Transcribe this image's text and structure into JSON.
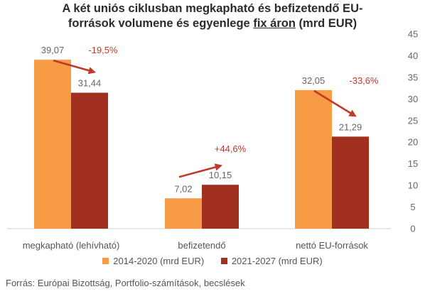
{
  "chart_data": {
    "type": "bar",
    "title_line1": "A két uniós ciklusban megkapható és befizetendő EU-",
    "title_line2_pre": "források volumene és egyenlege ",
    "title_line2_underlined": "fix áron",
    "title_line2_post": " (mrd EUR)",
    "categories": [
      "megkapható (lehívható)",
      "befizetendő",
      "nettó EU-források"
    ],
    "series": [
      {
        "name": "2014-2020 (mrd EUR)",
        "values": [
          39.07,
          7.02,
          32.05
        ],
        "labels": [
          "39,07",
          "7,02",
          "32,05"
        ],
        "color": "#F79B45"
      },
      {
        "name": "2021-2027 (mrd EUR)",
        "values": [
          31.44,
          10.15,
          21.29
        ],
        "labels": [
          "31,44",
          "10,15",
          "21,29"
        ],
        "color": "#A23021"
      }
    ],
    "changes": [
      "-19,5%",
      "+44,6%",
      "-33,6%"
    ],
    "change_color": "#C0392B",
    "y_axis": {
      "position": "right",
      "ylim": [
        0,
        45
      ],
      "ticks": [
        0,
        5,
        10,
        15,
        20,
        25,
        30,
        35,
        40,
        45
      ]
    },
    "legend_position": "bottom",
    "source": "Forrás: Európai Bizottság, Portfolio-számítások, becslések"
  }
}
